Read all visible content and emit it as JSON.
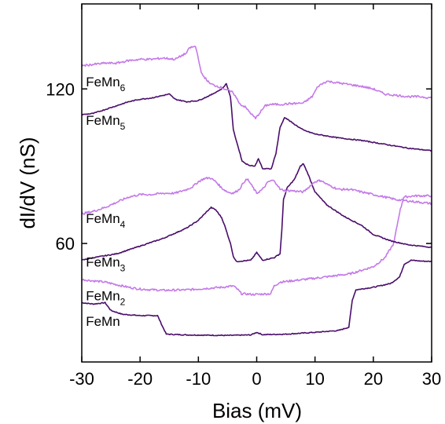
{
  "chart_data": {
    "type": "line",
    "title": "",
    "xlabel": "Bias (mV)",
    "ylabel": "dI/dV (nS)",
    "xlim": [
      -30,
      30
    ],
    "ylim": [
      14,
      153
    ],
    "x_ticks": [
      "-30",
      "-20",
      "-10",
      "0",
      "10",
      "20",
      "30"
    ],
    "y_ticks": [
      "60",
      "120"
    ],
    "grid": false,
    "legend": "none (series labelled directly on plot)",
    "colors": {
      "dark": "#4a0d6b",
      "light": "#c47ae8"
    },
    "series": [
      {
        "name": "FeMn",
        "label_base": "FeMn",
        "label_sub": "",
        "color": "dark",
        "points": [
          [
            -30,
            37
          ],
          [
            -28,
            36.5
          ],
          [
            -26,
            37
          ],
          [
            -25,
            34
          ],
          [
            -23,
            32.5
          ],
          [
            -20,
            32
          ],
          [
            -17,
            32
          ],
          [
            -16.2,
            28
          ],
          [
            -15.5,
            24.8
          ],
          [
            -12,
            24.5
          ],
          [
            -5,
            24.3
          ],
          [
            -1,
            24.5
          ],
          [
            0,
            25.5
          ],
          [
            1,
            24.6
          ],
          [
            5,
            24.8
          ],
          [
            10,
            25.5
          ],
          [
            14,
            26.2
          ],
          [
            15.8,
            27.5
          ],
          [
            16.4,
            38
          ],
          [
            17,
            42
          ],
          [
            20,
            43
          ],
          [
            23,
            44.5
          ],
          [
            24.5,
            47
          ],
          [
            25.3,
            52
          ],
          [
            26.5,
            53.5
          ],
          [
            28,
            53.2
          ],
          [
            30,
            53
          ]
        ]
      },
      {
        "name": "FeMn2",
        "label_base": "FeMn",
        "label_sub": "2",
        "color": "light",
        "points": [
          [
            -30,
            46
          ],
          [
            -28,
            45.5
          ],
          [
            -26,
            45
          ],
          [
            -24,
            44
          ],
          [
            -22,
            43
          ],
          [
            -20,
            42.3
          ],
          [
            -16,
            41.8
          ],
          [
            -12,
            42
          ],
          [
            -6,
            43
          ],
          [
            -4,
            43.5
          ],
          [
            -3.2,
            42
          ],
          [
            -2.6,
            40.5
          ],
          [
            -0.5,
            40.2
          ],
          [
            2.4,
            40.5
          ],
          [
            3,
            43.5
          ],
          [
            4,
            45
          ],
          [
            10,
            46.5
          ],
          [
            16,
            48.2
          ],
          [
            20,
            51
          ],
          [
            22,
            54.5
          ],
          [
            23.5,
            60
          ],
          [
            24.5,
            72
          ],
          [
            25.2,
            78
          ],
          [
            27,
            78.5
          ],
          [
            30,
            78.5
          ]
        ]
      },
      {
        "name": "FeMn3",
        "label_base": "FeMn",
        "label_sub": "3",
        "color": "dark",
        "points": [
          [
            -30,
            53.5
          ],
          [
            -28,
            54.5
          ],
          [
            -24,
            56
          ],
          [
            -20,
            59
          ],
          [
            -16,
            62
          ],
          [
            -12,
            66
          ],
          [
            -10,
            69
          ],
          [
            -8.5,
            72.5
          ],
          [
            -7.8,
            74
          ],
          [
            -7,
            73
          ],
          [
            -6,
            70
          ],
          [
            -5.5,
            67
          ],
          [
            -4.5,
            60
          ],
          [
            -4,
            55
          ],
          [
            -3.5,
            53
          ],
          [
            -1,
            53.5
          ],
          [
            0,
            56.5
          ],
          [
            1,
            53.5
          ],
          [
            3,
            54.5
          ],
          [
            4,
            56
          ],
          [
            4.3,
            65
          ],
          [
            4.6,
            77
          ],
          [
            5.2,
            81.5
          ],
          [
            6.5,
            85
          ],
          [
            7.5,
            90
          ],
          [
            8,
            91
          ],
          [
            8.8,
            87
          ],
          [
            10,
            80
          ],
          [
            12,
            75
          ],
          [
            15,
            70.5
          ],
          [
            18,
            67
          ],
          [
            20,
            63.5
          ],
          [
            23,
            61
          ],
          [
            26,
            59.5
          ],
          [
            30,
            58.5
          ]
        ]
      },
      {
        "name": "FeMn4",
        "label_base": "FeMn",
        "label_sub": "4",
        "color": "light",
        "points": [
          [
            -30,
            71.5
          ],
          [
            -28,
            72.5
          ],
          [
            -26,
            74
          ],
          [
            -24,
            76
          ],
          [
            -22,
            78
          ],
          [
            -20,
            79
          ],
          [
            -18,
            79
          ],
          [
            -16,
            79.5
          ],
          [
            -14,
            79.5
          ],
          [
            -12,
            81
          ],
          [
            -11,
            82
          ],
          [
            -10,
            84
          ],
          [
            -9,
            85.2
          ],
          [
            -8,
            85.5
          ],
          [
            -7,
            84
          ],
          [
            -6,
            81.5
          ],
          [
            -5,
            80
          ],
          [
            -4,
            79.5
          ],
          [
            -3,
            81
          ],
          [
            -2,
            84.5
          ],
          [
            -1.5,
            84.8
          ],
          [
            -1,
            83
          ],
          [
            0,
            79.5
          ],
          [
            1,
            81
          ],
          [
            2,
            84
          ],
          [
            2.8,
            84.5
          ],
          [
            3.5,
            83
          ],
          [
            4,
            81
          ],
          [
            5,
            80.5
          ],
          [
            6,
            80.5
          ],
          [
            8,
            80
          ],
          [
            10,
            84
          ],
          [
            11,
            84.5
          ],
          [
            12,
            83
          ],
          [
            14,
            81
          ],
          [
            16,
            81
          ],
          [
            18,
            80
          ],
          [
            20,
            79
          ],
          [
            22,
            78
          ],
          [
            24,
            77
          ],
          [
            26,
            76.5
          ],
          [
            28,
            76
          ],
          [
            30,
            75.5
          ]
        ]
      },
      {
        "name": "FeMn5",
        "label_base": "FeMn",
        "label_sub": "5",
        "color": "dark",
        "points": [
          [
            -30,
            110
          ],
          [
            -28,
            110.5
          ],
          [
            -26,
            112
          ],
          [
            -24,
            113.5
          ],
          [
            -22,
            115
          ],
          [
            -20,
            116
          ],
          [
            -18,
            116.5
          ],
          [
            -16,
            117.5
          ],
          [
            -15,
            118
          ],
          [
            -14,
            116
          ],
          [
            -12,
            115
          ],
          [
            -10,
            115.5
          ],
          [
            -8,
            117.5
          ],
          [
            -6,
            120
          ],
          [
            -5.2,
            122
          ],
          [
            -4.5,
            117
          ],
          [
            -4,
            104
          ],
          [
            -3,
            96
          ],
          [
            -2.5,
            92
          ],
          [
            -1.5,
            90.5
          ],
          [
            -0.3,
            90
          ],
          [
            0.3,
            93
          ],
          [
            1,
            89
          ],
          [
            2.5,
            89
          ],
          [
            3.3,
            95
          ],
          [
            4,
            105
          ],
          [
            4.8,
            109
          ],
          [
            6,
            107
          ],
          [
            8,
            104
          ],
          [
            10,
            102.5
          ],
          [
            14,
            101
          ],
          [
            18,
            100
          ],
          [
            22,
            98.5
          ],
          [
            26,
            97
          ],
          [
            30,
            96
          ]
        ]
      },
      {
        "name": "FeMn6",
        "label_base": "FeMn",
        "label_sub": "6",
        "color": "light",
        "points": [
          [
            -30,
            129
          ],
          [
            -28,
            129.5
          ],
          [
            -26,
            130
          ],
          [
            -24,
            130
          ],
          [
            -22,
            131
          ],
          [
            -20,
            131.5
          ],
          [
            -18,
            131.5
          ],
          [
            -16,
            132
          ],
          [
            -14,
            131.5
          ],
          [
            -12,
            134
          ],
          [
            -11.5,
            136
          ],
          [
            -10.5,
            136.5
          ],
          [
            -10,
            132
          ],
          [
            -9.5,
            126
          ],
          [
            -8,
            122
          ],
          [
            -6,
            120.5
          ],
          [
            -4,
            118.5
          ],
          [
            -3.5,
            116.5
          ],
          [
            -2.8,
            114
          ],
          [
            -2,
            113
          ],
          [
            -1.2,
            111
          ],
          [
            -0.2,
            108.5
          ],
          [
            0.6,
            111
          ],
          [
            1.5,
            113.5
          ],
          [
            2.3,
            114
          ],
          [
            4,
            114
          ],
          [
            6,
            114.3
          ],
          [
            8,
            114.5
          ],
          [
            9.5,
            117
          ],
          [
            10.5,
            121
          ],
          [
            12,
            123
          ],
          [
            15,
            122
          ],
          [
            18,
            121
          ],
          [
            20,
            120
          ],
          [
            22,
            118
          ],
          [
            24,
            117.5
          ],
          [
            26,
            117
          ],
          [
            28,
            117
          ],
          [
            30,
            116.5
          ]
        ]
      }
    ],
    "labels": [
      {
        "series": "FeMn6",
        "x": -29.3,
        "y": 121
      },
      {
        "series": "FeMn5",
        "x": -29.3,
        "y": 106
      },
      {
        "series": "FeMn4",
        "x": -29.3,
        "y": 68
      },
      {
        "series": "FeMn3",
        "x": -29.3,
        "y": 51
      },
      {
        "series": "FeMn2",
        "x": -29.3,
        "y": 38
      },
      {
        "series": "FeMn",
        "x": -29.3,
        "y": 28
      }
    ]
  }
}
